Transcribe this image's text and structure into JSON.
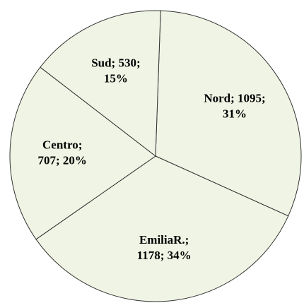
{
  "chart_data": {
    "type": "pie",
    "categories": [
      "Nord",
      "EmiliaR.",
      "Centro",
      "Sud"
    ],
    "values": [
      1095,
      1178,
      707,
      530
    ],
    "value_labels": [
      [
        "Nord; 1095;",
        "31%"
      ],
      [
        "EmiliaR.;",
        "1178; 34%"
      ],
      [
        "Centro;",
        "707; 20%"
      ],
      [
        "Sud; 530;",
        "15%"
      ]
    ],
    "color": "#f0f4e4"
  }
}
